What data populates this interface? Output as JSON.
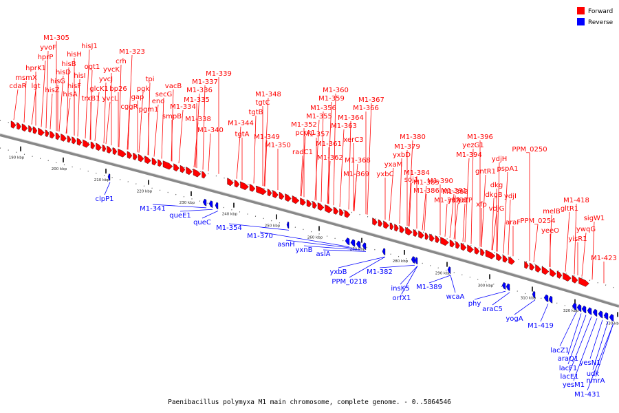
{
  "colors": {
    "forward": "#ff0000",
    "reverse": "#0000ff",
    "backbone": "#777777"
  },
  "legend": [
    {
      "label": "Forward",
      "color": "#ff0000"
    },
    {
      "label": "Reverse",
      "color": "#0000ff"
    }
  ],
  "caption": "Paenibacillus polymyxa M1 main chromosome, complete genome. - 0..5864546",
  "ticks": [
    "190 kbp",
    "200 kbp",
    "210 kbp",
    "220 kbp",
    "230 kbp",
    "240 kbp",
    "250 kbp",
    "260 kbp",
    "270 kbp",
    "280 kbp",
    "290 kbp",
    "300 kbp",
    "310 kbp",
    "320 kbp",
    "330 kbp"
  ],
  "forward_labels": [
    "cdaR",
    "msmX",
    "hprK1",
    "hprP",
    "yvoF",
    "M1-305",
    "lgt",
    "hisZ",
    "hisG",
    "hisD",
    "hisB",
    "hisH",
    "hisA",
    "hisI",
    "hisF",
    "hisJ1",
    "ogt1",
    "trxB1",
    "glcK1",
    "yvcJ",
    "yvcK",
    "yvcL",
    "crh",
    "bp26",
    "M1-323",
    "cggR",
    "gap",
    "pgk",
    "tpi",
    "pgm1",
    "eno",
    "secG",
    "smpB",
    "M1-334",
    "vacB",
    "M1-335",
    "M1-336",
    "M1-337",
    "M1-339",
    "M1-338",
    "M1-340",
    "tgtA",
    "M1-344",
    "tgtB",
    "tgtC",
    "M1-348",
    "M1-349",
    "M1-350",
    "pcrA1",
    "radC1",
    "M1-352",
    "M1-355",
    "M1-356",
    "M1-357",
    "M1-359",
    "M1-360",
    "M1-361",
    "M1-363",
    "M1-364",
    "M1-366",
    "M1-367",
    "M1-362",
    "xerC3",
    "M1-368",
    "M1-369",
    "yxbC",
    "yxaM",
    "yxbD",
    "M1-379",
    "M1-380",
    "soj1",
    "M1-384",
    "M1-385",
    "M1-386",
    "M1-390",
    "M1-391",
    "M1-392",
    "M1-393",
    "M1-394",
    "yezG1",
    "M1-396",
    "ydfO1",
    "ydfP",
    "xfp",
    "gntR1",
    "dkgB",
    "dkg",
    "pspA1",
    "ydjH",
    "PPM_0250",
    "vdjG",
    "ydjI",
    "araF",
    "PPM_0254",
    "melB",
    "yeeO",
    "gltR1",
    "M1-418",
    "yisR1",
    "ywqG",
    "sigW1",
    "M1-423"
  ],
  "reverse_labels": [
    "clpP1",
    "M1-341",
    "queE1",
    "queC",
    "M1-354",
    "M1-370",
    "asnH",
    "yxnB",
    "aslA",
    "yxbB",
    "PPM_0218",
    "M1-382",
    "insK5",
    "orfX1",
    "M1-389",
    "wcaA",
    "phy",
    "araC5",
    "yogA",
    "M1-419",
    "lacZ1",
    "araQ1",
    "lacF1",
    "lacE1",
    "yesM1",
    "yesN1",
    "udk",
    "nmrA",
    "M1-431"
  ]
}
